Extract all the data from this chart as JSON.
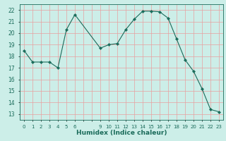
{
  "x": [
    0,
    1,
    2,
    3,
    4,
    5,
    6,
    9,
    10,
    11,
    12,
    13,
    14,
    15,
    16,
    17,
    18,
    19,
    20,
    21,
    22,
    23
  ],
  "y": [
    18.5,
    17.5,
    17.5,
    17.5,
    17.0,
    20.3,
    21.6,
    18.7,
    19.0,
    19.1,
    20.3,
    21.2,
    21.9,
    21.9,
    21.85,
    21.3,
    19.5,
    17.7,
    16.7,
    15.2,
    13.4,
    13.2
  ],
  "line_color": "#1a6b5a",
  "marker": "D",
  "marker_size": 2.2,
  "bg_color": "#cceee8",
  "grid_color": "#e8a0a0",
  "xlabel": "Humidex (Indice chaleur)",
  "xlim": [
    -0.5,
    23.5
  ],
  "ylim": [
    12.5,
    22.5
  ],
  "yticks": [
    13,
    14,
    15,
    16,
    17,
    18,
    19,
    20,
    21,
    22
  ],
  "xtick_labels": [
    "0",
    "1",
    "2",
    "3",
    "4",
    "5",
    "6",
    "",
    "",
    "9",
    "10",
    "11",
    "12",
    "13",
    "14",
    "15",
    "16",
    "17",
    "18",
    "19",
    "20",
    "21",
    "22",
    "23"
  ],
  "xtick_positions": [
    0,
    1,
    2,
    3,
    4,
    5,
    6,
    7,
    8,
    9,
    10,
    11,
    12,
    13,
    14,
    15,
    16,
    17,
    18,
    19,
    20,
    21,
    22,
    23
  ],
  "font_color": "#1a6b5a"
}
